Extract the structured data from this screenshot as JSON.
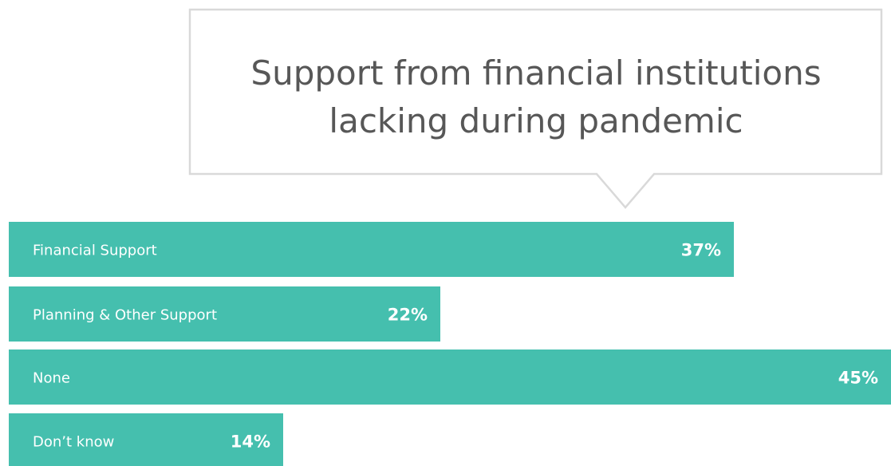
{
  "colors": {
    "bar": "#45bfae",
    "bar_text": "#ffffff",
    "title_text": "#575757",
    "callout_border": "#d9d9d9"
  },
  "chart_data": {
    "type": "bar",
    "orientation": "horizontal",
    "title_lines": [
      "Support from financial institutions",
      "lacking during pandemic"
    ],
    "categories": [
      "Financial Support",
      "Planning & Other Support",
      "None",
      "Don’t know"
    ],
    "values": [
      37,
      22,
      45,
      14
    ],
    "value_labels": [
      "37%",
      "22%",
      "45%",
      "14%"
    ],
    "unit": "%",
    "xlim": [
      0,
      45
    ],
    "grid": false,
    "legend": false
  }
}
